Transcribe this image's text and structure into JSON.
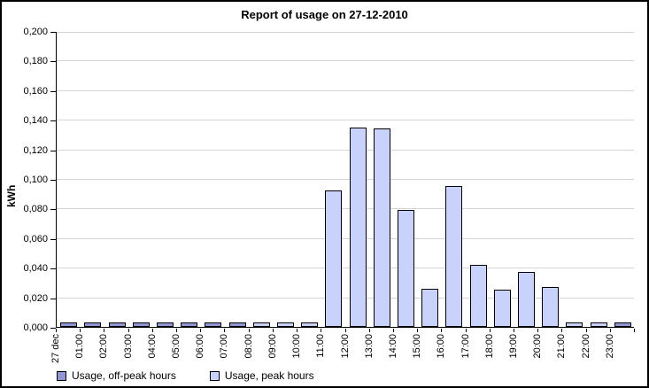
{
  "chart_data": {
    "type": "bar",
    "title": "Report of usage on 27-12-2010",
    "ylabel": "kWh",
    "xlabel": "",
    "ylim": [
      0,
      0.2
    ],
    "ytick_step": 0.02,
    "ytick_labels": [
      "0,000",
      "0,020",
      "0,040",
      "0,060",
      "0,080",
      "0,100",
      "0,120",
      "0,140",
      "0,160",
      "0,180",
      "0,200"
    ],
    "decimal_separator": ",",
    "grid": true,
    "gridline_color": "#d4d4d4",
    "axis_color": "#000000",
    "bar_border_color": "#000000",
    "legend_position": "bottom-left",
    "categories": [
      "27 dec",
      "01:00",
      "02:00",
      "03:00",
      "04:00",
      "05:00",
      "06:00",
      "07:00",
      "08:00",
      "09:00",
      "10:00",
      "11:00",
      "12:00",
      "13:00",
      "14:00",
      "15:00",
      "16:00",
      "17:00",
      "18:00",
      "19:00",
      "20:00",
      "21:00",
      "22:00",
      "23:00"
    ],
    "series": [
      {
        "name": "Usage, off-peak hours",
        "color": "#9097d3",
        "values": [
          0.003,
          0.003,
          0.003,
          0.003,
          0.003,
          0.003,
          0.003,
          0.003,
          null,
          null,
          null,
          null,
          null,
          null,
          null,
          null,
          null,
          null,
          null,
          null,
          null,
          null,
          null,
          0.003
        ]
      },
      {
        "name": "Usage, peak hours",
        "color": "#c8d2fa",
        "values": [
          null,
          null,
          null,
          null,
          null,
          null,
          null,
          null,
          0.003,
          0.003,
          0.003,
          0.092,
          0.135,
          0.134,
          0.079,
          0.026,
          0.095,
          0.042,
          0.025,
          0.037,
          0.027,
          0.003,
          0.003,
          null
        ]
      }
    ]
  }
}
